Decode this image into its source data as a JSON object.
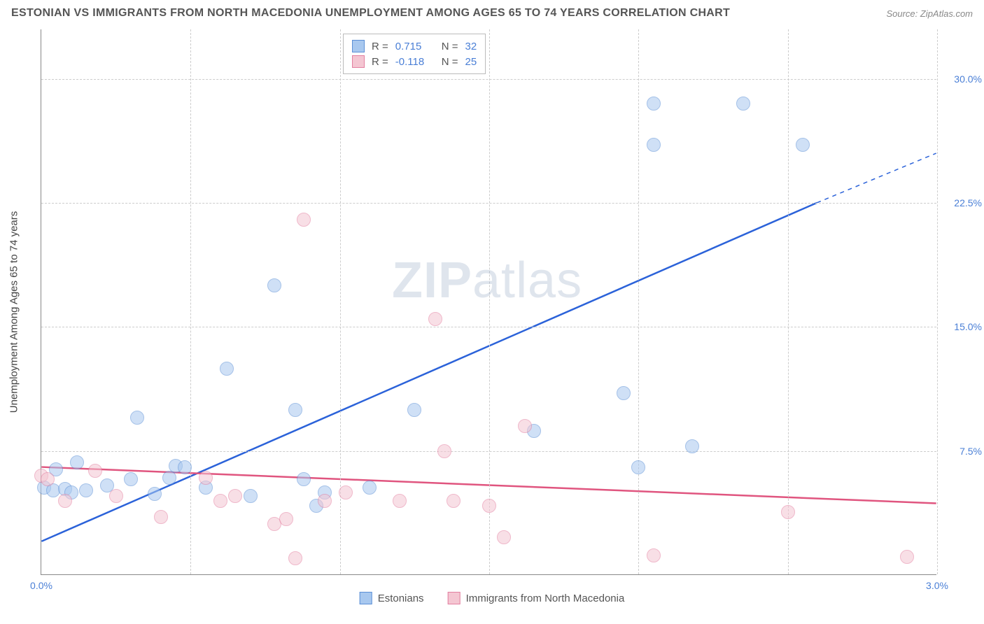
{
  "title": "ESTONIAN VS IMMIGRANTS FROM NORTH MACEDONIA UNEMPLOYMENT AMONG AGES 65 TO 74 YEARS CORRELATION CHART",
  "source": "Source: ZipAtlas.com",
  "watermark_a": "ZIP",
  "watermark_b": "atlas",
  "y_axis_title": "Unemployment Among Ages 65 to 74 years",
  "chart": {
    "type": "scatter",
    "xlim": [
      0.0,
      3.0
    ],
    "ylim": [
      0.0,
      33.0
    ],
    "x_ticks": [
      0.0,
      0.5,
      1.0,
      1.5,
      2.0,
      2.5,
      3.0
    ],
    "x_tick_labels": [
      "0.0%",
      "",
      "",
      "",
      "",
      "",
      "3.0%"
    ],
    "y_ticks": [
      7.5,
      15.0,
      22.5,
      30.0
    ],
    "y_tick_labels": [
      "7.5%",
      "15.0%",
      "22.5%",
      "30.0%"
    ],
    "grid_color": "#cccccc",
    "axis_color": "#808080",
    "background_color": "#ffffff",
    "tick_label_color": "#4a7fd6",
    "marker_radius": 10,
    "marker_opacity": 0.55,
    "series": [
      {
        "name": "Estonians",
        "fill": "#a8c8ef",
        "stroke": "#5b8fd6",
        "trend_color": "#2b62d9",
        "trend_width": 2.5,
        "R": "0.715",
        "N": "32",
        "trend": {
          "x1": 0.0,
          "y1": 2.0,
          "x2": 2.6,
          "y2": 22.5,
          "x_dash_end": 3.0,
          "y_dash_end": 25.5
        },
        "points": [
          {
            "x": 0.01,
            "y": 5.3
          },
          {
            "x": 0.04,
            "y": 5.1
          },
          {
            "x": 0.08,
            "y": 5.2
          },
          {
            "x": 0.1,
            "y": 5.0
          },
          {
            "x": 0.12,
            "y": 6.8
          },
          {
            "x": 0.15,
            "y": 5.1
          },
          {
            "x": 0.22,
            "y": 5.4
          },
          {
            "x": 0.3,
            "y": 5.8
          },
          {
            "x": 0.32,
            "y": 9.5
          },
          {
            "x": 0.38,
            "y": 4.9
          },
          {
            "x": 0.45,
            "y": 6.6
          },
          {
            "x": 0.48,
            "y": 6.5
          },
          {
            "x": 0.55,
            "y": 5.3
          },
          {
            "x": 0.62,
            "y": 12.5
          },
          {
            "x": 0.7,
            "y": 4.8
          },
          {
            "x": 0.78,
            "y": 17.5
          },
          {
            "x": 0.85,
            "y": 10.0
          },
          {
            "x": 0.92,
            "y": 4.2
          },
          {
            "x": 0.95,
            "y": 5.0
          },
          {
            "x": 1.1,
            "y": 5.3
          },
          {
            "x": 1.25,
            "y": 10.0
          },
          {
            "x": 1.65,
            "y": 8.7
          },
          {
            "x": 1.95,
            "y": 11.0
          },
          {
            "x": 2.0,
            "y": 6.5
          },
          {
            "x": 2.05,
            "y": 26.0
          },
          {
            "x": 2.05,
            "y": 28.5
          },
          {
            "x": 2.18,
            "y": 7.8
          },
          {
            "x": 2.35,
            "y": 28.5
          },
          {
            "x": 2.55,
            "y": 26.0
          },
          {
            "x": 0.05,
            "y": 6.4
          },
          {
            "x": 0.43,
            "y": 5.9
          },
          {
            "x": 0.88,
            "y": 5.8
          }
        ]
      },
      {
        "name": "Immigrants from North Macedonia",
        "fill": "#f4c6d2",
        "stroke": "#e37fa0",
        "trend_color": "#e0557f",
        "trend_width": 2.5,
        "R": "-0.118",
        "N": "25",
        "trend": {
          "x1": 0.0,
          "y1": 6.5,
          "x2": 3.0,
          "y2": 4.3
        },
        "points": [
          {
            "x": 0.0,
            "y": 6.0
          },
          {
            "x": 0.02,
            "y": 5.8
          },
          {
            "x": 0.08,
            "y": 4.5
          },
          {
            "x": 0.18,
            "y": 6.3
          },
          {
            "x": 0.25,
            "y": 4.8
          },
          {
            "x": 0.4,
            "y": 3.5
          },
          {
            "x": 0.55,
            "y": 5.9
          },
          {
            "x": 0.6,
            "y": 4.5
          },
          {
            "x": 0.65,
            "y": 4.8
          },
          {
            "x": 0.78,
            "y": 3.1
          },
          {
            "x": 0.82,
            "y": 3.4
          },
          {
            "x": 0.85,
            "y": 1.0
          },
          {
            "x": 0.88,
            "y": 21.5
          },
          {
            "x": 0.95,
            "y": 4.5
          },
          {
            "x": 1.02,
            "y": 5.0
          },
          {
            "x": 1.2,
            "y": 4.5
          },
          {
            "x": 1.32,
            "y": 15.5
          },
          {
            "x": 1.35,
            "y": 7.5
          },
          {
            "x": 1.38,
            "y": 4.5
          },
          {
            "x": 1.5,
            "y": 4.2
          },
          {
            "x": 1.55,
            "y": 2.3
          },
          {
            "x": 1.62,
            "y": 9.0
          },
          {
            "x": 2.05,
            "y": 1.2
          },
          {
            "x": 2.5,
            "y": 3.8
          },
          {
            "x": 2.9,
            "y": 1.1
          }
        ]
      }
    ]
  },
  "stats_legend": {
    "r_label": "R",
    "n_label": "N",
    "value_color": "#4a7fd6",
    "label_color": "#555555"
  },
  "bottom_legend": {
    "items": [
      "Estonians",
      "Immigrants from North Macedonia"
    ]
  }
}
